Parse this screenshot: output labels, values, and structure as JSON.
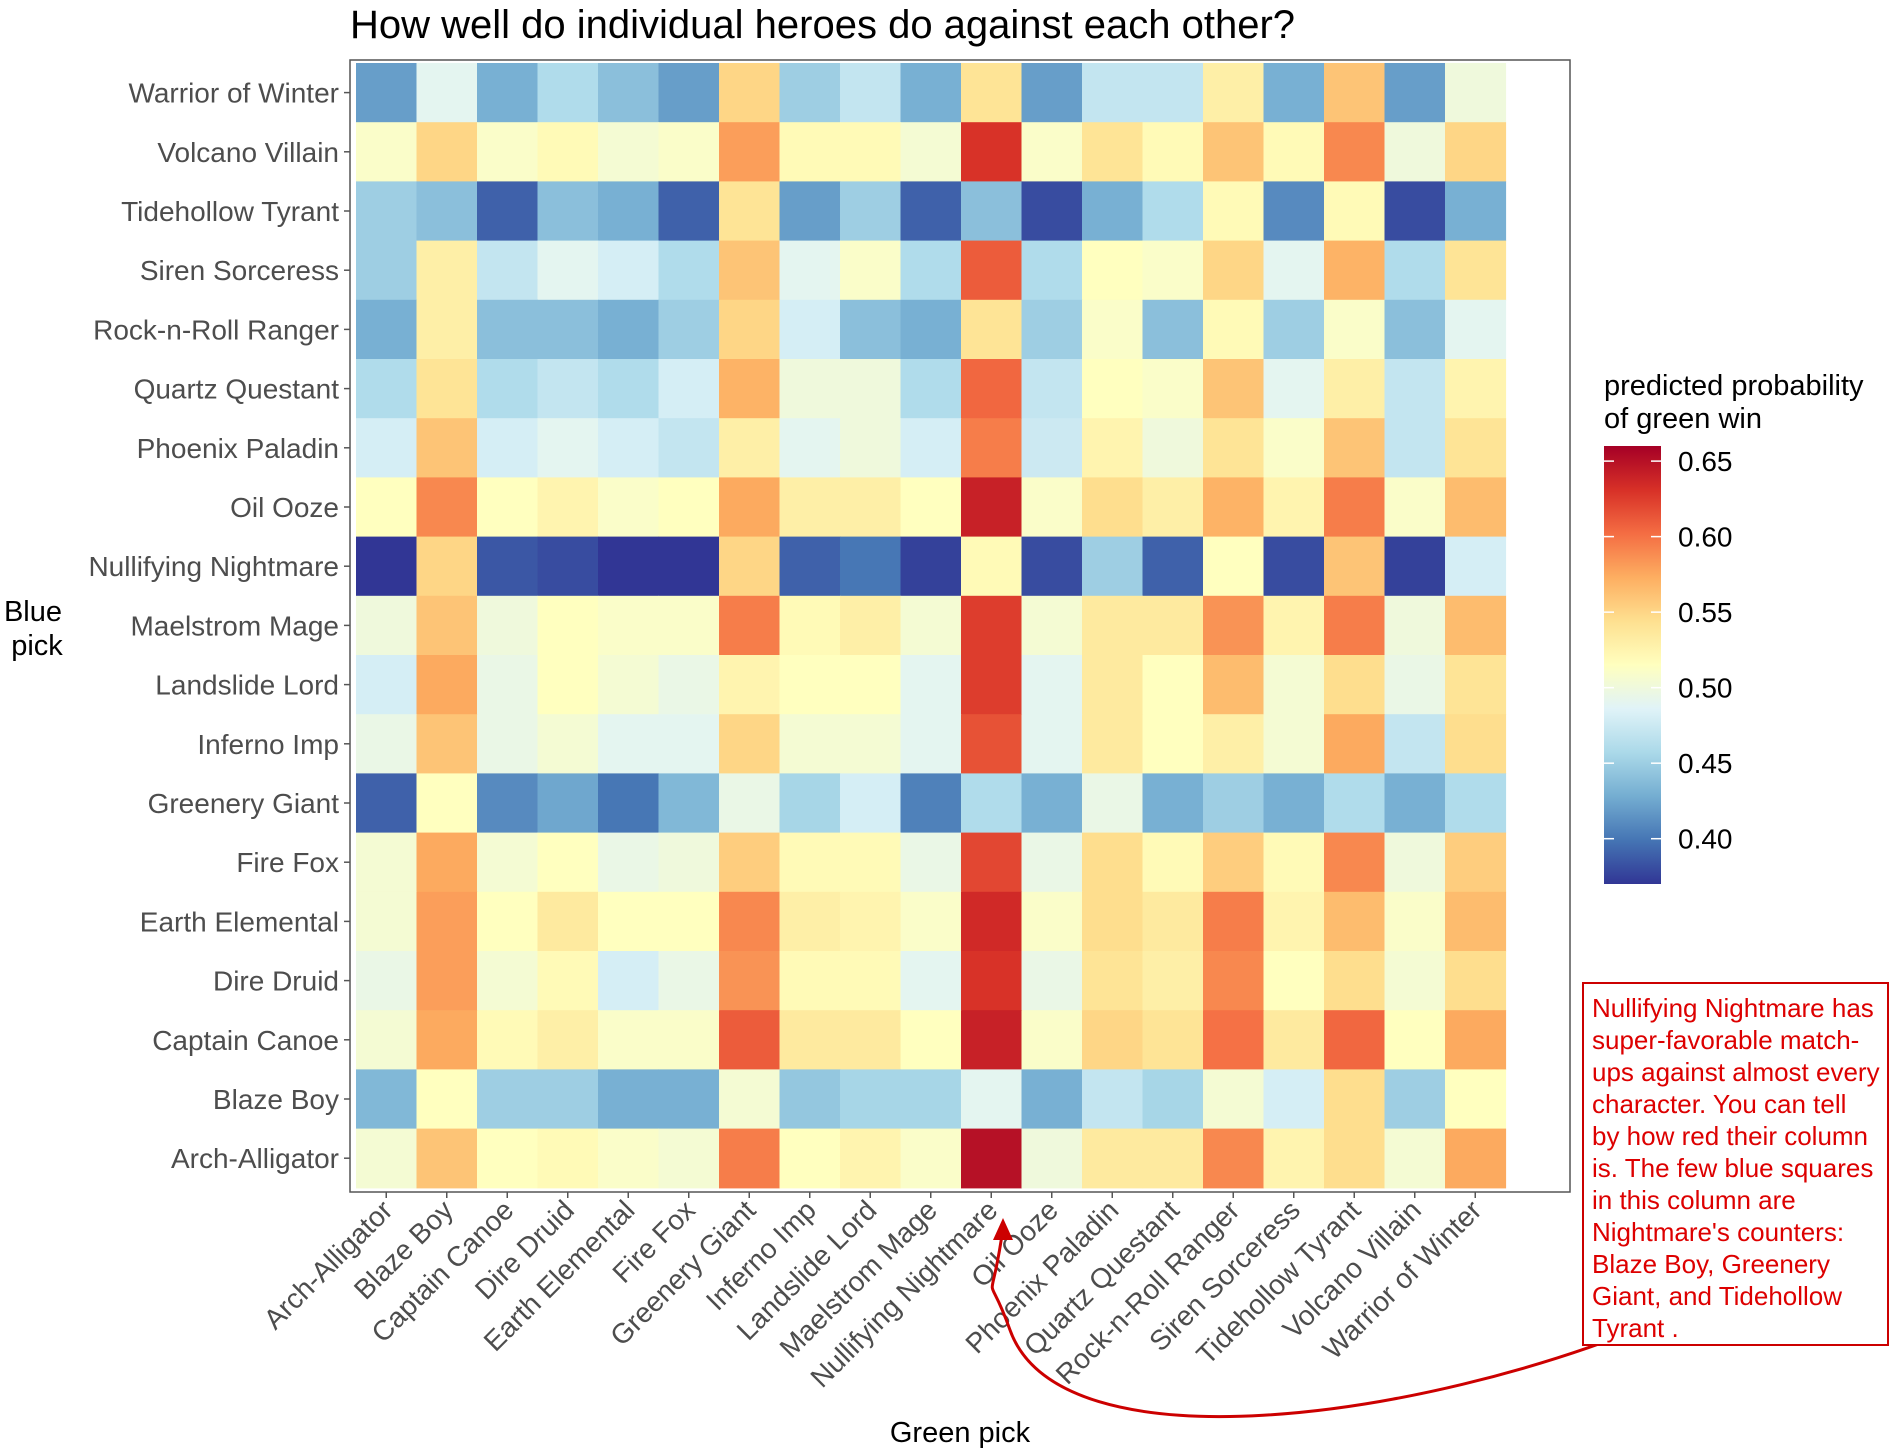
{
  "chart_data": {
    "type": "heatmap",
    "title": "How well do individual heroes do against each other?",
    "xlabel": "Green pick",
    "ylabel_lines": [
      "Blue",
      "pick"
    ],
    "x": [
      "Arch-Alligator",
      "Blaze Boy",
      "Captain Canoe",
      "Dire Druid",
      "Earth Elemental",
      "Fire Fox",
      "Greenery Giant",
      "Inferno Imp",
      "Landslide Lord",
      "Maelstrom Mage",
      "Nullifying Nightmare",
      "Oil Ooze",
      "Phoenix Paladin",
      "Quartz Questant",
      "Rock-n-Roll Ranger",
      "Siren Sorceress",
      "Tidehollow Tyrant",
      "Volcano Villain",
      "Warrior of Winter"
    ],
    "y": [
      "Warrior of Winter",
      "Volcano Villain",
      "Tidehollow Tyrant",
      "Siren Sorceress",
      "Rock-n-Roll Ranger",
      "Quartz Questant",
      "Phoenix Paladin",
      "Oil Ooze",
      "Nullifying Nightmare",
      "Maelstrom Mage",
      "Landslide Lord",
      "Inferno Imp",
      "Greenery Giant",
      "Fire Fox",
      "Earth Elemental",
      "Dire Druid",
      "Captain Canoe",
      "Blaze Boy",
      "Arch-Alligator"
    ],
    "z": [
      [
        0.42,
        0.49,
        0.43,
        0.46,
        0.44,
        0.42,
        0.55,
        0.45,
        0.47,
        0.43,
        0.54,
        0.42,
        0.47,
        0.47,
        0.53,
        0.43,
        0.56,
        0.42,
        0.5
      ],
      [
        0.51,
        0.55,
        0.51,
        0.52,
        0.505,
        0.51,
        0.58,
        0.52,
        0.52,
        0.505,
        0.63,
        0.51,
        0.54,
        0.52,
        0.56,
        0.52,
        0.59,
        0.5,
        0.55
      ],
      [
        0.45,
        0.44,
        0.39,
        0.44,
        0.43,
        0.39,
        0.54,
        0.42,
        0.45,
        0.39,
        0.44,
        0.38,
        0.43,
        0.46,
        0.52,
        0.41,
        0.52,
        0.38,
        0.43
      ],
      [
        0.45,
        0.53,
        0.47,
        0.49,
        0.48,
        0.46,
        0.56,
        0.49,
        0.51,
        0.46,
        0.61,
        0.46,
        0.515,
        0.51,
        0.55,
        0.49,
        0.57,
        0.46,
        0.54
      ],
      [
        0.43,
        0.53,
        0.44,
        0.44,
        0.43,
        0.45,
        0.55,
        0.48,
        0.44,
        0.43,
        0.54,
        0.45,
        0.51,
        0.44,
        0.52,
        0.45,
        0.51,
        0.44,
        0.49
      ],
      [
        0.46,
        0.54,
        0.46,
        0.47,
        0.46,
        0.48,
        0.57,
        0.5,
        0.5,
        0.46,
        0.605,
        0.47,
        0.515,
        0.51,
        0.56,
        0.49,
        0.53,
        0.47,
        0.525
      ],
      [
        0.48,
        0.56,
        0.48,
        0.49,
        0.48,
        0.47,
        0.53,
        0.49,
        0.5,
        0.48,
        0.595,
        0.475,
        0.525,
        0.5,
        0.54,
        0.51,
        0.56,
        0.47,
        0.54
      ],
      [
        0.515,
        0.59,
        0.515,
        0.525,
        0.51,
        0.515,
        0.575,
        0.53,
        0.53,
        0.515,
        0.64,
        0.51,
        0.545,
        0.53,
        0.57,
        0.525,
        0.595,
        0.51,
        0.565
      ],
      [
        0.37,
        0.55,
        0.385,
        0.38,
        0.37,
        0.37,
        0.55,
        0.39,
        0.4,
        0.375,
        0.52,
        0.38,
        0.45,
        0.39,
        0.515,
        0.38,
        0.56,
        0.375,
        0.48
      ],
      [
        0.5,
        0.56,
        0.5,
        0.515,
        0.51,
        0.51,
        0.595,
        0.52,
        0.53,
        0.505,
        0.625,
        0.505,
        0.535,
        0.535,
        0.585,
        0.525,
        0.595,
        0.5,
        0.565
      ],
      [
        0.48,
        0.575,
        0.495,
        0.515,
        0.505,
        0.495,
        0.525,
        0.515,
        0.515,
        0.49,
        0.625,
        0.49,
        0.535,
        0.515,
        0.565,
        0.505,
        0.545,
        0.495,
        0.54
      ],
      [
        0.495,
        0.56,
        0.495,
        0.505,
        0.49,
        0.49,
        0.55,
        0.505,
        0.505,
        0.49,
        0.615,
        0.49,
        0.535,
        0.515,
        0.53,
        0.505,
        0.575,
        0.47,
        0.545
      ],
      [
        0.39,
        0.515,
        0.41,
        0.425,
        0.4,
        0.435,
        0.495,
        0.455,
        0.48,
        0.405,
        0.46,
        0.43,
        0.495,
        0.43,
        0.45,
        0.43,
        0.46,
        0.43,
        0.46
      ],
      [
        0.505,
        0.575,
        0.505,
        0.515,
        0.495,
        0.5,
        0.555,
        0.52,
        0.52,
        0.495,
        0.62,
        0.495,
        0.545,
        0.52,
        0.555,
        0.52,
        0.59,
        0.5,
        0.555
      ],
      [
        0.505,
        0.58,
        0.515,
        0.535,
        0.515,
        0.515,
        0.59,
        0.53,
        0.525,
        0.51,
        0.635,
        0.51,
        0.545,
        0.535,
        0.595,
        0.525,
        0.565,
        0.51,
        0.565
      ],
      [
        0.495,
        0.58,
        0.505,
        0.52,
        0.48,
        0.495,
        0.585,
        0.52,
        0.52,
        0.49,
        0.63,
        0.495,
        0.54,
        0.53,
        0.59,
        0.515,
        0.545,
        0.505,
        0.545
      ],
      [
        0.505,
        0.575,
        0.52,
        0.53,
        0.51,
        0.51,
        0.61,
        0.535,
        0.535,
        0.515,
        0.64,
        0.51,
        0.55,
        0.54,
        0.6,
        0.535,
        0.605,
        0.515,
        0.575
      ],
      [
        0.435,
        0.515,
        0.45,
        0.45,
        0.43,
        0.43,
        0.505,
        0.445,
        0.455,
        0.455,
        0.49,
        0.43,
        0.47,
        0.455,
        0.505,
        0.48,
        0.545,
        0.45,
        0.515
      ],
      [
        0.505,
        0.56,
        0.515,
        0.52,
        0.51,
        0.505,
        0.595,
        0.515,
        0.525,
        0.51,
        0.65,
        0.5,
        0.535,
        0.535,
        0.59,
        0.525,
        0.545,
        0.505,
        0.575
      ]
    ],
    "colorbar": {
      "title_lines": [
        "predicted probability",
        "of green win"
      ],
      "ticks": [
        "0.40",
        "0.45",
        "0.50",
        "0.55",
        "0.60",
        "0.65"
      ],
      "range": [
        0.37,
        0.66
      ],
      "stops": [
        "#313695",
        "#4575b4",
        "#74add1",
        "#abd9e9",
        "#e0f3f8",
        "#ffffbf",
        "#fee090",
        "#fdae61",
        "#f46d43",
        "#d73027",
        "#a50026"
      ]
    },
    "grid": false
  },
  "annotation": {
    "text": "Nullifying Nightmare has super-favorable match-ups against almost every character. You can tell by how red their column is. The few blue squares in this column are Nightmare's counters: Blaze Boy, Greenery Giant, and Tidehollow Tyrant .",
    "color": "#dd0000"
  }
}
